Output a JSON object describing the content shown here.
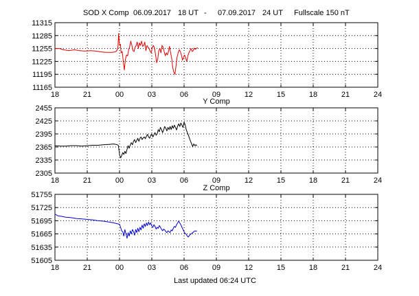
{
  "header": {
    "station_label": "SOD X Comp",
    "start_date": "06.09.2017",
    "start_hour": "18 UT",
    "separator": "-",
    "end_date": "07.09.2017",
    "end_hour": "24 UT",
    "fullscale": "Fullscale 150 nT"
  },
  "footer": {
    "updated": "Last updated  06:24 UTC"
  },
  "chart_data": [
    {
      "type": "line",
      "title": "",
      "xlabel": "",
      "ylabel": "",
      "color": "#e00000",
      "x_ticks": [
        "18",
        "21",
        "00",
        "03",
        "06",
        "09",
        "12",
        "15",
        "18",
        "21",
        "24"
      ],
      "y_ticks": [
        "11315",
        "11285",
        "11255",
        "11225",
        "11195",
        "11165"
      ],
      "xlim": [
        18,
        48
      ],
      "ylim": [
        11165,
        11315
      ],
      "grid": true,
      "series": [
        {
          "x": [
            18.0,
            18.4,
            18.8,
            19.3,
            19.8,
            20.3,
            20.8,
            21.3,
            21.8,
            22.3,
            22.8,
            23.3,
            23.6,
            23.75,
            23.85,
            23.92,
            24.0,
            24.08,
            24.15,
            24.25,
            24.35,
            24.45,
            24.55,
            24.65,
            24.75,
            24.85,
            24.95,
            25.05,
            25.15,
            25.25,
            25.35,
            25.45,
            25.55,
            25.65,
            25.75,
            25.85,
            25.95,
            26.05,
            26.15,
            26.25,
            26.35,
            26.45,
            26.55,
            26.65,
            26.75,
            26.85,
            26.95,
            27.05,
            27.15,
            27.25,
            27.35,
            27.45,
            27.55,
            27.65,
            27.75,
            27.85,
            27.95,
            28.05,
            28.15,
            28.25,
            28.35,
            28.45,
            28.55,
            28.65,
            28.75,
            28.85,
            28.95,
            29.05,
            29.15,
            29.25,
            29.35,
            29.45,
            29.55,
            29.65,
            29.75,
            29.85,
            29.95,
            30.05,
            30.15,
            30.25,
            30.35,
            30.45,
            30.55,
            30.65,
            30.75,
            30.85,
            30.95,
            31.05,
            31.15,
            31.25
          ],
          "y": [
            11255,
            11255,
            11252,
            11250,
            11252,
            11250,
            11249,
            11250,
            11249,
            11247,
            11246,
            11246,
            11247,
            11250,
            11258,
            11290,
            11262,
            11265,
            11245,
            11248,
            11225,
            11205,
            11230,
            11240,
            11238,
            11252,
            11260,
            11272,
            11262,
            11250,
            11248,
            11258,
            11262,
            11270,
            11255,
            11268,
            11262,
            11272,
            11260,
            11262,
            11270,
            11250,
            11262,
            11258,
            11255,
            11248,
            11245,
            11258,
            11262,
            11256,
            11240,
            11222,
            11230,
            11250,
            11255,
            11245,
            11262,
            11258,
            11248,
            11238,
            11245,
            11240,
            11248,
            11260,
            11245,
            11232,
            11210,
            11200,
            11195,
            11215,
            11235,
            11245,
            11252,
            11248,
            11240,
            11228,
            11235,
            11240,
            11232,
            11225,
            11238,
            11245,
            11250,
            11255,
            11248,
            11250,
            11256,
            11253,
            11255,
            11257
          ]
        }
      ]
    },
    {
      "type": "line",
      "title": "Y Comp",
      "xlabel": "",
      "ylabel": "",
      "color": "#000000",
      "x_ticks": [
        "18",
        "21",
        "00",
        "03",
        "06",
        "09",
        "12",
        "15",
        "18",
        "21",
        "24"
      ],
      "y_ticks": [
        "2455",
        "2425",
        "2395",
        "2365",
        "2335",
        "2305"
      ],
      "xlim": [
        18,
        48
      ],
      "ylim": [
        2305,
        2455
      ],
      "grid": true,
      "series": [
        {
          "x": [
            18.0,
            18.5,
            19.0,
            19.5,
            20.0,
            20.5,
            21.0,
            21.5,
            22.0,
            22.5,
            23.0,
            23.5,
            23.8,
            23.9,
            24.0,
            24.1,
            24.2,
            24.3,
            24.4,
            24.5,
            24.6,
            24.7,
            24.8,
            24.9,
            25.0,
            25.1,
            25.2,
            25.3,
            25.4,
            25.5,
            25.6,
            25.7,
            25.8,
            25.9,
            26.0,
            26.1,
            26.2,
            26.3,
            26.4,
            26.5,
            26.6,
            26.7,
            26.8,
            26.9,
            27.0,
            27.1,
            27.2,
            27.3,
            27.4,
            27.5,
            27.6,
            27.7,
            27.8,
            27.9,
            28.0,
            28.1,
            28.2,
            28.3,
            28.4,
            28.5,
            28.6,
            28.7,
            28.8,
            28.9,
            29.0,
            29.1,
            29.2,
            29.3,
            29.4,
            29.5,
            29.6,
            29.7,
            29.8,
            29.9,
            30.0,
            30.1,
            30.2,
            30.3,
            30.4,
            30.5,
            30.6,
            30.7,
            30.8,
            30.9,
            31.0,
            31.1,
            31.2
          ],
          "y": [
            2368,
            2367,
            2367,
            2368,
            2368,
            2367,
            2368,
            2369,
            2369,
            2370,
            2371,
            2372,
            2370,
            2368,
            2348,
            2340,
            2345,
            2352,
            2348,
            2355,
            2350,
            2360,
            2368,
            2362,
            2370,
            2375,
            2370,
            2378,
            2382,
            2375,
            2380,
            2385,
            2378,
            2385,
            2388,
            2382,
            2386,
            2388,
            2384,
            2390,
            2394,
            2388,
            2385,
            2392,
            2395,
            2388,
            2393,
            2398,
            2392,
            2395,
            2405,
            2400,
            2410,
            2405,
            2398,
            2404,
            2412,
            2408,
            2402,
            2410,
            2405,
            2412,
            2405,
            2414,
            2408,
            2415,
            2410,
            2404,
            2413,
            2418,
            2412,
            2420,
            2415,
            2410,
            2422,
            2416,
            2405,
            2398,
            2392,
            2385,
            2378,
            2372,
            2366,
            2372,
            2368,
            2370,
            2368
          ]
        }
      ]
    },
    {
      "type": "line",
      "title": "Z Comp",
      "xlabel": "",
      "ylabel": "",
      "color": "#0000d0",
      "x_ticks": [
        "18",
        "21",
        "00",
        "03",
        "06",
        "09",
        "12",
        "15",
        "18",
        "21",
        "24"
      ],
      "y_ticks": [
        "51755",
        "51725",
        "51695",
        "51665",
        "51635",
        "51605"
      ],
      "xlim": [
        18,
        48
      ],
      "ylim": [
        51605,
        51755
      ],
      "grid": true,
      "series": [
        {
          "x": [
            18.0,
            18.3,
            18.6,
            19.0,
            19.5,
            20.0,
            20.5,
            21.0,
            21.5,
            22.0,
            22.5,
            23.0,
            23.5,
            23.8,
            24.0,
            24.1,
            24.2,
            24.3,
            24.4,
            24.5,
            24.6,
            24.7,
            24.8,
            24.9,
            25.0,
            25.1,
            25.2,
            25.3,
            25.4,
            25.5,
            25.6,
            25.7,
            25.8,
            25.9,
            26.0,
            26.1,
            26.2,
            26.3,
            26.4,
            26.5,
            26.6,
            26.7,
            26.8,
            26.9,
            27.0,
            27.1,
            27.2,
            27.3,
            27.4,
            27.5,
            27.6,
            27.7,
            27.8,
            27.9,
            28.0,
            28.1,
            28.2,
            28.3,
            28.4,
            28.5,
            28.6,
            28.7,
            28.8,
            28.9,
            29.0,
            29.1,
            29.2,
            29.3,
            29.4,
            29.5,
            29.6,
            29.7,
            29.8,
            29.9,
            30.0,
            30.1,
            30.2,
            30.3,
            30.4,
            30.5,
            30.6,
            30.7,
            30.8,
            30.9,
            31.0,
            31.1,
            31.2
          ],
          "y": [
            51710,
            51706,
            51705,
            51703,
            51702,
            51700,
            51699,
            51698,
            51697,
            51695,
            51694,
            51692,
            51690,
            51688,
            51687,
            51680,
            51672,
            51670,
            51660,
            51675,
            51665,
            51655,
            51668,
            51660,
            51672,
            51665,
            51675,
            51670,
            51662,
            51675,
            51668,
            51678,
            51670,
            51680,
            51674,
            51685,
            51678,
            51688,
            51682,
            51690,
            51684,
            51692,
            51686,
            51690,
            51683,
            51680,
            51686,
            51682,
            51676,
            51680,
            51678,
            51684,
            51680,
            51676,
            51672,
            51676,
            51674,
            51670,
            51668,
            51672,
            51670,
            51668,
            51674,
            51672,
            51678,
            51682,
            51680,
            51686,
            51690,
            51694,
            51690,
            51686,
            51680,
            51675,
            51670,
            51666,
            51664,
            51660,
            51658,
            51662,
            51664,
            51666,
            51668,
            51670,
            51672,
            51671,
            51672
          ]
        }
      ]
    }
  ]
}
